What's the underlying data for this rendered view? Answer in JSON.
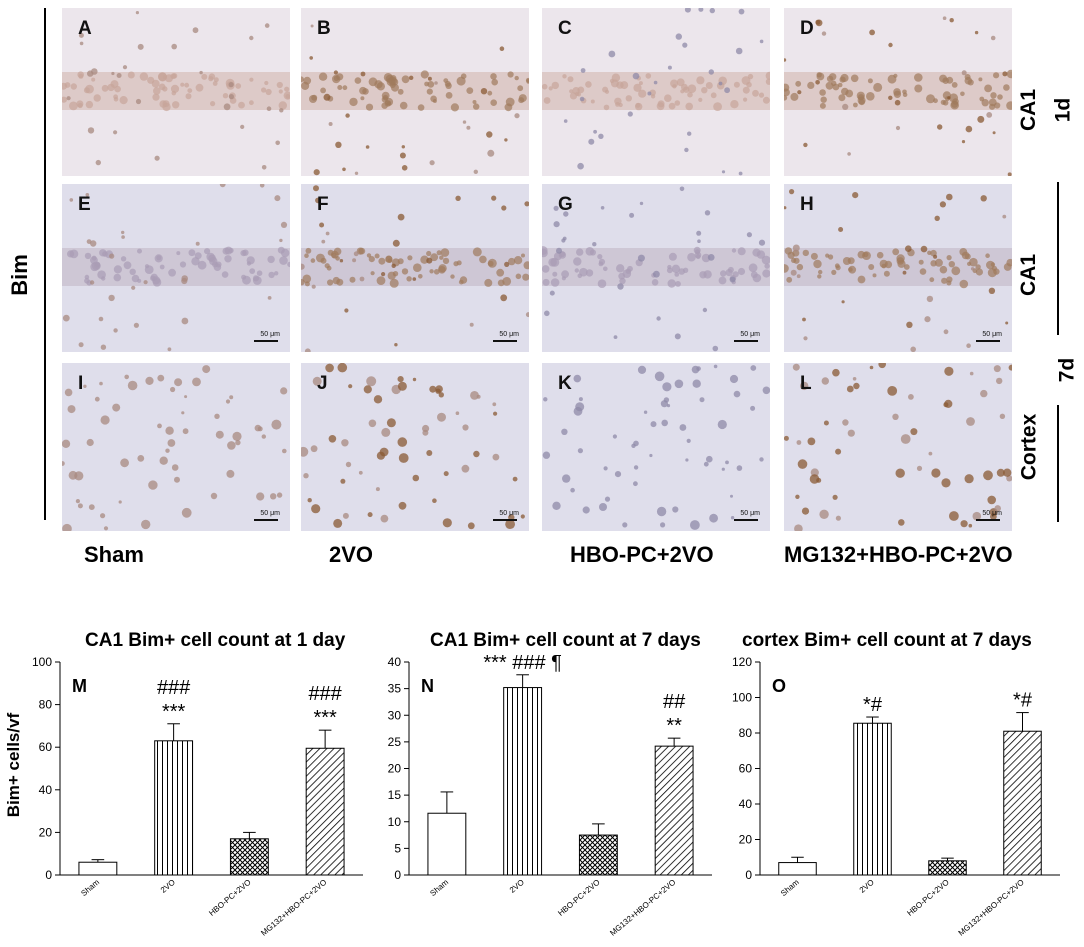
{
  "figure": {
    "side_label": "Bim",
    "row_labels": [
      "CA1",
      "CA1",
      "Cortex"
    ],
    "day_labels": [
      "1d",
      "7d"
    ],
    "group_labels": [
      "Sham",
      "2VO",
      "HBO-PC+2VO",
      "MG132+HBO-PC+2VO"
    ],
    "scale_bar_label": "50 μm",
    "panels": [
      {
        "letter": "A",
        "row": 0,
        "col": 0
      },
      {
        "letter": "B",
        "row": 0,
        "col": 1
      },
      {
        "letter": "C",
        "row": 0,
        "col": 2
      },
      {
        "letter": "D",
        "row": 0,
        "col": 3
      },
      {
        "letter": "E",
        "row": 1,
        "col": 0
      },
      {
        "letter": "F",
        "row": 1,
        "col": 1
      },
      {
        "letter": "G",
        "row": 1,
        "col": 2
      },
      {
        "letter": "H",
        "row": 1,
        "col": 3
      },
      {
        "letter": "I",
        "row": 2,
        "col": 0
      },
      {
        "letter": "J",
        "row": 2,
        "col": 1
      },
      {
        "letter": "K",
        "row": 2,
        "col": 2
      },
      {
        "letter": "L",
        "row": 2,
        "col": 3
      }
    ]
  },
  "chart_data": [
    {
      "type": "bar",
      "panel_letter": "M",
      "title": "CA1 Bim+ cell count at 1 day",
      "ylabel": "Bim+ cells/vf",
      "categories": [
        "Sham",
        "2VO",
        "HBO-PC+2VO",
        "MG132+HBO-PC+2VO"
      ],
      "values": [
        6,
        63,
        17,
        59.5
      ],
      "errors": [
        1.2,
        8,
        3,
        8.5
      ],
      "patterns": [
        "none",
        "vertical",
        "crosshatch",
        "diagonal"
      ],
      "annotations": [
        [],
        [
          "###",
          "***"
        ],
        [],
        [
          "###",
          "***"
        ]
      ],
      "ylim": [
        0,
        100
      ],
      "yticks": [
        0,
        20,
        40,
        60,
        80,
        100
      ]
    },
    {
      "type": "bar",
      "panel_letter": "N",
      "title": "CA1 Bim+ cell count at 7 days",
      "ylabel": "",
      "categories": [
        "Sham",
        "2VO",
        "HBO-PC+2VO",
        "MG132+HBO-PC+2VO"
      ],
      "values": [
        11.6,
        35.2,
        7.5,
        24.2
      ],
      "errors": [
        4,
        2.4,
        2.1,
        1.5
      ],
      "patterns": [
        "none",
        "vertical",
        "crosshatch",
        "diagonal"
      ],
      "annotations": [
        [],
        [
          "*** ### ¶"
        ],
        [],
        [
          "##",
          "**"
        ]
      ],
      "ylim": [
        0,
        40
      ],
      "yticks": [
        0,
        5,
        10,
        15,
        20,
        25,
        30,
        35,
        40
      ]
    },
    {
      "type": "bar",
      "panel_letter": "O",
      "title": "cortex Bim+ cell count at 7 days",
      "ylabel": "",
      "categories": [
        "Sham",
        "2VO",
        "HBO-PC+2VO",
        "MG132+HBO-PC+2VO"
      ],
      "values": [
        7,
        85.5,
        8,
        81
      ],
      "errors": [
        3,
        3.5,
        1.5,
        10.5
      ],
      "patterns": [
        "none",
        "vertical",
        "crosshatch",
        "diagonal"
      ],
      "annotations": [
        [],
        [
          "*#"
        ],
        [],
        [
          "*#"
        ]
      ],
      "ylim": [
        0,
        120
      ],
      "yticks": [
        0,
        20,
        40,
        60,
        80,
        100,
        120
      ]
    }
  ]
}
